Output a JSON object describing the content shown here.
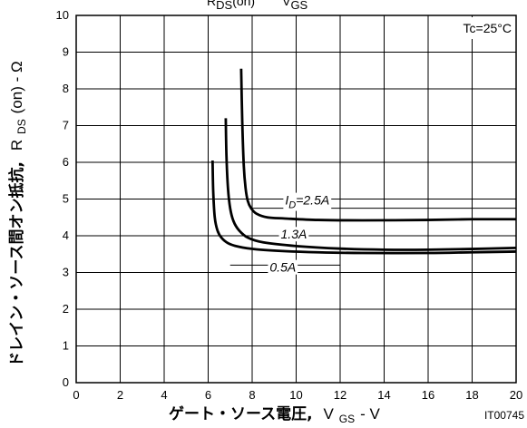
{
  "chart_data": {
    "type": "line",
    "title": "RDS(on) -- VGS",
    "title_parts": {
      "r": "R",
      "r_sub": "DS",
      "r_tail": "(on)",
      "sep": " -- ",
      "v": "V",
      "v_sub": "GS"
    },
    "xlabel_main": "ゲート・ソース電圧,",
    "xlabel_sym": "V",
    "xlabel_sub": "GS",
    "xlabel_unit": " - V",
    "ylabel_main": "ドレイン・ソース間オン抵抗,",
    "ylabel_sym": "R",
    "ylabel_sub": "DS",
    "ylabel_unit": "(on) - Ω",
    "xlim": [
      0,
      20
    ],
    "ylim": [
      0,
      10
    ],
    "x_ticks": [
      "0",
      "2",
      "4",
      "6",
      "8",
      "10",
      "12",
      "14",
      "16",
      "18",
      "20"
    ],
    "y_ticks": [
      "0",
      "1",
      "2",
      "3",
      "4",
      "5",
      "6",
      "7",
      "8",
      "9",
      "10"
    ],
    "grid": true,
    "condition": "Tc=25°C",
    "figure_code": "IT00745",
    "series": [
      {
        "name": "ID=2.5A",
        "label_parts": {
          "sym": "I",
          "sub": "D",
          "rest": "=2.5A"
        },
        "label_at": [
          9.5,
          4.85
        ],
        "leader": [
          [
            8.0,
            4.75
          ],
          [
            20,
            4.75
          ]
        ],
        "x": [
          7.5,
          7.55,
          7.62,
          7.7,
          7.8,
          7.95,
          8.2,
          8.7,
          9.5,
          11,
          13,
          16,
          18,
          20
        ],
        "y": [
          8.55,
          7.1,
          5.9,
          5.3,
          4.95,
          4.75,
          4.6,
          4.5,
          4.47,
          4.43,
          4.42,
          4.43,
          4.45,
          4.45
        ]
      },
      {
        "name": "1.3A",
        "label_parts": {
          "sym": "",
          "sub": "",
          "rest": "1.3A"
        },
        "label_at": [
          9.3,
          3.92
        ],
        "leader": [
          [
            7.0,
            4.0
          ],
          [
            20,
            4.0
          ]
        ],
        "x": [
          6.8,
          6.83,
          6.9,
          7.0,
          7.15,
          7.4,
          7.8,
          8.5,
          10,
          12,
          14,
          16,
          18,
          20
        ],
        "y": [
          7.2,
          6.2,
          5.3,
          4.75,
          4.4,
          4.15,
          3.95,
          3.82,
          3.72,
          3.65,
          3.62,
          3.62,
          3.64,
          3.67
        ]
      },
      {
        "name": "0.5A",
        "label_parts": {
          "sym": "",
          "sub": "",
          "rest": "0.5A"
        },
        "label_at": [
          8.8,
          3.02
        ],
        "leader": [
          [
            7.0,
            3.2
          ],
          [
            12,
            3.2
          ]
        ],
        "x": [
          6.2,
          6.23,
          6.3,
          6.42,
          6.6,
          6.9,
          7.4,
          8.2,
          9.5,
          11,
          13,
          16,
          18,
          20
        ],
        "y": [
          6.05,
          5.2,
          4.5,
          4.15,
          3.95,
          3.8,
          3.7,
          3.63,
          3.58,
          3.55,
          3.53,
          3.53,
          3.55,
          3.57
        ]
      }
    ]
  }
}
